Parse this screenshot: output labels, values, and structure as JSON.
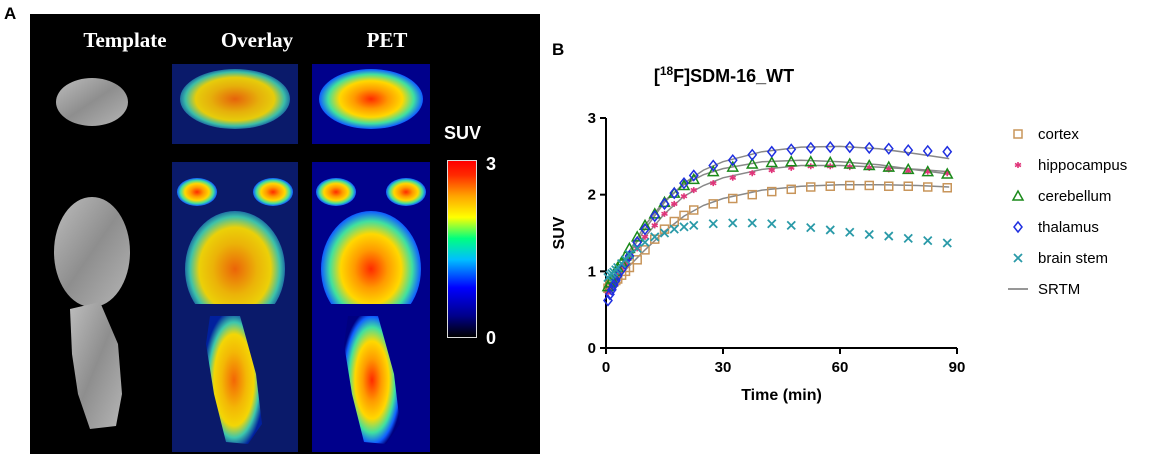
{
  "panel_a": {
    "letter": "A",
    "columns": [
      "Template",
      "Overlay",
      "PET"
    ],
    "colorbar": {
      "label": "SUV",
      "max": "3",
      "min": "0"
    }
  },
  "panel_b": {
    "letter": "B"
  },
  "chart_data": {
    "type": "scatter",
    "title_prefix": "[",
    "title_sup": "18",
    "title_rest": "F]SDM-16_WT",
    "xlabel": "Time (min)",
    "ylabel": "SUV",
    "xlim": [
      0,
      90
    ],
    "ylim": [
      0,
      3
    ],
    "xticks": [
      0,
      30,
      60,
      90
    ],
    "yticks": [
      0,
      1,
      2,
      3
    ],
    "x": [
      0.5,
      1,
      1.5,
      2,
      2.5,
      3,
      4,
      5,
      6,
      8,
      10,
      12.5,
      15,
      17.5,
      20,
      22.5,
      27.5,
      32.5,
      37.5,
      42.5,
      47.5,
      52.5,
      57.5,
      62.5,
      67.5,
      72.5,
      77.5,
      82.5,
      87.5
    ],
    "series": [
      {
        "name": "cortex",
        "marker": "square",
        "color": "#c8955a",
        "values": [
          0.78,
          0.82,
          0.84,
          0.86,
          0.88,
          0.9,
          0.95,
          1.0,
          1.05,
          1.15,
          1.28,
          1.42,
          1.55,
          1.65,
          1.73,
          1.8,
          1.88,
          1.95,
          2.0,
          2.04,
          2.07,
          2.1,
          2.11,
          2.12,
          2.12,
          2.11,
          2.11,
          2.1,
          2.09
        ]
      },
      {
        "name": "hippocampus",
        "marker": "star",
        "color": "#e0357a",
        "values": [
          0.72,
          0.78,
          0.82,
          0.86,
          0.9,
          0.95,
          1.02,
          1.1,
          1.18,
          1.3,
          1.45,
          1.6,
          1.75,
          1.88,
          1.98,
          2.06,
          2.15,
          2.22,
          2.28,
          2.32,
          2.35,
          2.37,
          2.37,
          2.36,
          2.35,
          2.33,
          2.31,
          2.3,
          2.28
        ]
      },
      {
        "name": "cerebellum",
        "marker": "triangle",
        "color": "#1a8a1a",
        "values": [
          0.8,
          0.85,
          0.9,
          0.95,
          1.0,
          1.05,
          1.12,
          1.2,
          1.3,
          1.45,
          1.6,
          1.75,
          1.9,
          2.02,
          2.12,
          2.2,
          2.3,
          2.36,
          2.4,
          2.42,
          2.43,
          2.43,
          2.42,
          2.4,
          2.38,
          2.36,
          2.33,
          2.3,
          2.27
        ]
      },
      {
        "name": "thalamus",
        "marker": "diamond",
        "color": "#1f2fe0",
        "values": [
          0.62,
          0.7,
          0.76,
          0.82,
          0.88,
          0.94,
          1.02,
          1.1,
          1.2,
          1.38,
          1.55,
          1.72,
          1.88,
          2.02,
          2.15,
          2.25,
          2.38,
          2.45,
          2.52,
          2.56,
          2.59,
          2.61,
          2.62,
          2.62,
          2.61,
          2.6,
          2.58,
          2.57,
          2.56
        ]
      },
      {
        "name": "brain stem",
        "marker": "x",
        "color": "#2a9aa8",
        "values": [
          0.92,
          0.95,
          0.97,
          0.99,
          1.02,
          1.05,
          1.1,
          1.15,
          1.22,
          1.3,
          1.38,
          1.45,
          1.5,
          1.55,
          1.58,
          1.6,
          1.62,
          1.63,
          1.63,
          1.62,
          1.6,
          1.57,
          1.54,
          1.51,
          1.48,
          1.46,
          1.43,
          1.4,
          1.37
        ]
      }
    ],
    "fit": {
      "name": "SRTM",
      "color": "#888888",
      "curves": [
        {
          "x": [
            0,
            2,
            5,
            10,
            15,
            20,
            25,
            30,
            40,
            50,
            60,
            70,
            80,
            88
          ],
          "y": [
            0.7,
            0.85,
            1.02,
            1.28,
            1.52,
            1.72,
            1.86,
            1.95,
            2.06,
            2.11,
            2.13,
            2.13,
            2.12,
            2.1
          ]
        },
        {
          "x": [
            0,
            2,
            5,
            10,
            15,
            20,
            25,
            30,
            40,
            50,
            60,
            70,
            80,
            88
          ],
          "y": [
            0.7,
            0.88,
            1.1,
            1.45,
            1.75,
            1.98,
            2.12,
            2.22,
            2.33,
            2.38,
            2.38,
            2.36,
            2.33,
            2.3
          ]
        },
        {
          "x": [
            0,
            2,
            5,
            10,
            15,
            20,
            25,
            30,
            40,
            50,
            60,
            70,
            80,
            88
          ],
          "y": [
            0.72,
            0.92,
            1.18,
            1.6,
            1.92,
            2.13,
            2.26,
            2.34,
            2.43,
            2.45,
            2.43,
            2.39,
            2.32,
            2.27
          ]
        },
        {
          "x": [
            0,
            2,
            5,
            10,
            15,
            20,
            25,
            30,
            40,
            50,
            60,
            70,
            80,
            88
          ],
          "y": [
            0.7,
            0.9,
            1.15,
            1.55,
            1.9,
            2.15,
            2.32,
            2.43,
            2.56,
            2.62,
            2.63,
            2.6,
            2.53,
            2.47
          ]
        }
      ]
    },
    "legend_position": "right"
  }
}
